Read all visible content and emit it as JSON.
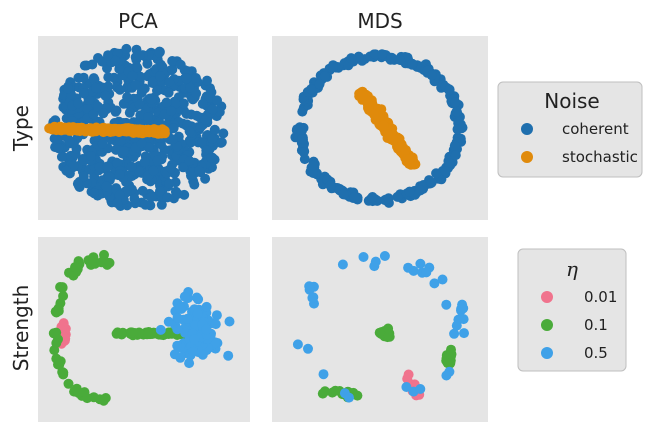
{
  "chart_data": {
    "type": "scatter",
    "columns": [
      "PCA",
      "MDS"
    ],
    "rows": [
      "Type",
      "Strength"
    ],
    "panel_background": "#e5e5e5",
    "grid": false,
    "legends": [
      {
        "row": "Type",
        "title": "Noise",
        "placement": "right",
        "entries": [
          {
            "label": "coherent",
            "color": "#1f6fae"
          },
          {
            "label": "stochastic",
            "color": "#e08a0b"
          }
        ]
      },
      {
        "row": "Strength",
        "title": "η",
        "placement": "right",
        "entries": [
          {
            "label": "0.01",
            "color": "#f0738d"
          },
          {
            "label": "0.1",
            "color": "#4aab3a"
          },
          {
            "label": "0.5",
            "color": "#3fa1e8"
          }
        ]
      }
    ],
    "panels": [
      {
        "row": "Type",
        "column": "PCA",
        "series": [
          {
            "name": "coherent",
            "color": "#1f6fae",
            "shape": "filled ellipse cloud",
            "center": [
              0.0,
              0.0
            ],
            "radius": [
              1.0,
              1.0
            ],
            "n": 700
          },
          {
            "name": "stochastic",
            "color": "#e08a0b",
            "shape": "thin horizontal band",
            "from": [
              -1.0,
              0.0
            ],
            "to": [
              0.3,
              -0.05
            ],
            "n": 300
          }
        ]
      },
      {
        "row": "Type",
        "column": "MDS",
        "series": [
          {
            "name": "coherent",
            "color": "#1f6fae",
            "shape": "ring",
            "center": [
              0.0,
              0.0
            ],
            "radius": [
              0.85,
              0.9
            ],
            "n": 260
          },
          {
            "name": "stochastic",
            "color": "#e08a0b",
            "shape": "diagonal streak",
            "from": [
              -0.2,
              0.45
            ],
            "to": [
              0.35,
              -0.45
            ],
            "n": 300
          }
        ]
      },
      {
        "row": "Strength",
        "column": "PCA",
        "series": [
          {
            "name": "0.01",
            "color": "#f0738d",
            "shape": "vertical cluster",
            "center": [
              -0.88,
              -0.05
            ],
            "n": 40
          },
          {
            "name": "0.1",
            "color": "#4aab3a",
            "shape": "arc and horizontal band",
            "center": [
              -0.2,
              -0.05
            ],
            "n": 110
          },
          {
            "name": "0.5",
            "color": "#3fa1e8",
            "shape": "right-side cloud",
            "center": [
              0.55,
              -0.05
            ],
            "n": 110
          }
        ]
      },
      {
        "row": "Strength",
        "column": "MDS",
        "series": [
          {
            "name": "0.01",
            "color": "#f0738d",
            "shape": "short streak",
            "from": [
              0.28,
              -0.55
            ],
            "to": [
              0.4,
              -0.8
            ],
            "n": 12
          },
          {
            "name": "0.1",
            "color": "#4aab3a",
            "shape": "small clusters",
            "center": [
              0.2,
              -0.2
            ],
            "n": 40
          },
          {
            "name": "0.5",
            "color": "#3fa1e8",
            "shape": "sparse ring",
            "center": [
              0.0,
              0.0
            ],
            "radius": [
              0.9,
              0.9
            ],
            "n": 40
          }
        ]
      }
    ]
  }
}
